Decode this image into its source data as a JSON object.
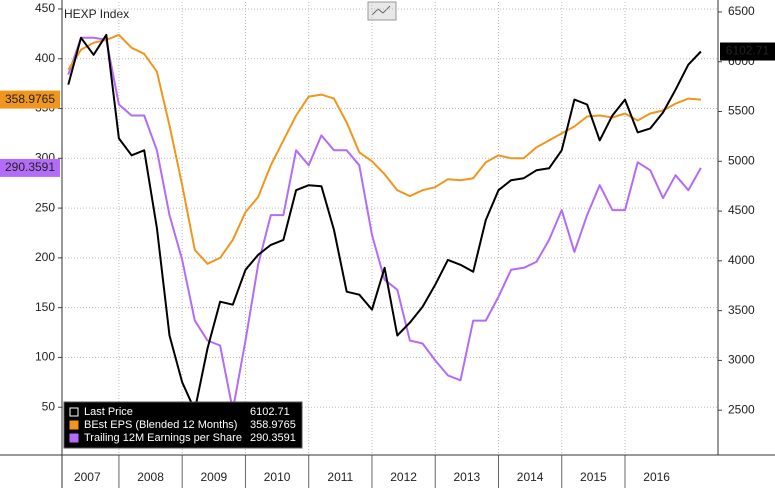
{
  "chart_data": {
    "type": "line",
    "title": "HEXP Index",
    "x": [
      2007.2,
      2007.4,
      2007.6,
      2007.8,
      2008.0,
      2008.2,
      2008.4,
      2008.6,
      2008.8,
      2009.0,
      2009.2,
      2009.4,
      2009.6,
      2009.8,
      2010.0,
      2010.2,
      2010.4,
      2010.6,
      2010.8,
      2011.0,
      2011.2,
      2011.4,
      2011.6,
      2011.8,
      2012.0,
      2012.2,
      2012.4,
      2012.6,
      2012.8,
      2013.0,
      2013.2,
      2013.4,
      2013.6,
      2013.8,
      2014.0,
      2014.2,
      2014.4,
      2014.6,
      2014.8,
      2015.0,
      2015.2,
      2015.4,
      2015.6,
      2015.8,
      2016.0,
      2016.2,
      2016.4,
      2016.6,
      2016.8,
      2017.0,
      2017.2
    ],
    "series": [
      {
        "name": "Last Price",
        "color": "#000000",
        "axis": "y2",
        "values": [
          5770,
          6240,
          6070,
          6270,
          5230,
          5060,
          5110,
          4330,
          3250,
          2780,
          2500,
          3120,
          3590,
          3560,
          3910,
          4060,
          4160,
          4210,
          4710,
          4760,
          4750,
          4310,
          3690,
          3660,
          3510,
          3930,
          3250,
          3380,
          3540,
          3760,
          4010,
          3960,
          3890,
          4410,
          4710,
          4810,
          4830,
          4910,
          4930,
          5110,
          5620,
          5570,
          5210,
          5460,
          5620,
          5290,
          5330,
          5490,
          5720,
          5970,
          6102.71
        ]
      },
      {
        "name": "BEst EPS (Blended 12 Months)",
        "color": "#f0961e",
        "values": [
          389,
          409,
          416,
          419,
          424,
          411,
          405,
          387,
          333,
          273,
          208,
          194,
          200,
          218,
          246,
          261,
          293,
          318,
          343,
          362,
          364,
          360,
          336,
          306,
          297,
          284,
          268,
          262,
          268,
          271,
          279,
          278,
          280,
          296,
          303,
          300,
          300,
          311,
          318,
          325,
          332,
          342,
          343,
          341,
          345,
          338,
          345,
          348,
          355,
          360,
          358.9765
        ]
      },
      {
        "name": "Trailing 12M Earnings per Share",
        "color": "#b36cf5",
        "values": [
          384,
          421,
          421,
          419,
          354,
          343,
          343,
          308,
          243,
          198,
          137,
          117,
          112,
          47,
          117,
          193,
          243,
          243,
          308,
          293,
          323,
          308,
          308,
          293,
          223,
          178,
          168,
          117,
          114,
          97,
          82,
          77,
          137,
          137,
          161,
          188,
          190,
          196,
          218,
          248,
          206,
          243,
          273,
          248,
          248,
          296,
          288,
          260,
          283,
          268,
          290.3591
        ]
      }
    ],
    "xlim": [
      2007.1,
      2017.47
    ],
    "xticks": [
      {
        "value": 2007.5,
        "label": "2007"
      },
      {
        "value": 2008.5,
        "label": "2008"
      },
      {
        "value": 2009.5,
        "label": "2009"
      },
      {
        "value": 2010.5,
        "label": "2010"
      },
      {
        "value": 2011.5,
        "label": "2011"
      },
      {
        "value": 2012.5,
        "label": "2012"
      },
      {
        "value": 2013.5,
        "label": "2013"
      },
      {
        "value": 2014.5,
        "label": "2014"
      },
      {
        "value": 2015.5,
        "label": "2015"
      },
      {
        "value": 2016.5,
        "label": "2016"
      }
    ],
    "ylim": [
      2,
      457
    ],
    "yticks": [
      50,
      100,
      150,
      200,
      250,
      300,
      350,
      400,
      450
    ],
    "y2lim": [
      2050,
      6600
    ],
    "y2ticks": [
      2500,
      3000,
      3500,
      4000,
      4500,
      5000,
      5500,
      6000,
      6500
    ],
    "grid": true
  }
}
